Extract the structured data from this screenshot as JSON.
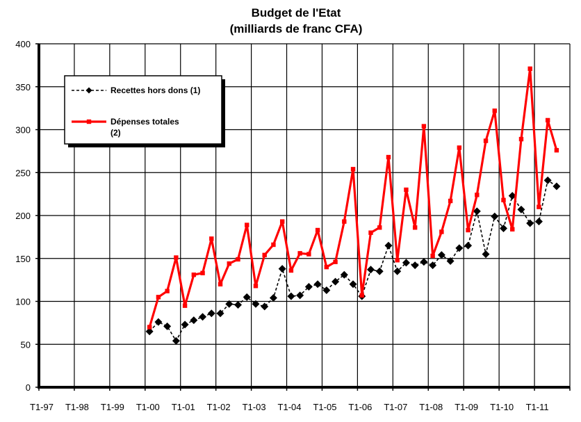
{
  "chart_data": {
    "type": "line",
    "title_lines": [
      "Budget de l'Etat",
      "(milliards de franc CFA)"
    ],
    "xlabel": "",
    "ylabel": "",
    "ylim": [
      0,
      400
    ],
    "yticks": [
      0,
      50,
      100,
      150,
      200,
      250,
      300,
      350,
      400
    ],
    "x_tick_labels": [
      "T1-97",
      "T1-98",
      "T1-99",
      "T1-00",
      "T1-01",
      "T1-02",
      "T1-03",
      "T1-04",
      "T1-05",
      "T1-06",
      "T1-07",
      "T1-08",
      "T1-09",
      "T1-10",
      "T1-11"
    ],
    "quarters_total": 60,
    "grid": true,
    "legend_position": "top-left",
    "series": [
      {
        "name_lines": [
          "Recettes hors dons (1)"
        ],
        "color": "#000000",
        "line_style": "dashed",
        "marker": "diamond",
        "start_quarter_index": 12,
        "values": [
          65,
          76,
          71,
          54,
          73,
          78,
          82,
          86,
          86,
          97,
          96,
          105,
          97,
          94,
          104,
          138,
          106,
          107,
          117,
          120,
          113,
          123,
          131,
          120,
          106,
          137,
          135,
          165,
          135,
          145,
          142,
          146,
          142,
          154,
          147,
          162,
          165,
          205,
          155,
          199,
          185,
          223,
          207,
          191,
          193,
          241,
          234
        ]
      },
      {
        "name_lines": [
          "Dépenses totales",
          "(2)"
        ],
        "color": "#ff0000",
        "line_style": "solid",
        "marker": "square",
        "start_quarter_index": 12,
        "values": [
          70,
          105,
          112,
          151,
          95,
          131,
          133,
          173,
          120,
          144,
          149,
          189,
          118,
          154,
          166,
          193,
          136,
          156,
          155,
          183,
          140,
          146,
          193,
          254,
          107,
          180,
          186,
          268,
          148,
          230,
          186,
          304,
          153,
          181,
          217,
          279,
          183,
          224,
          287,
          322,
          218,
          184,
          289,
          371,
          210,
          311,
          276
        ]
      }
    ]
  }
}
